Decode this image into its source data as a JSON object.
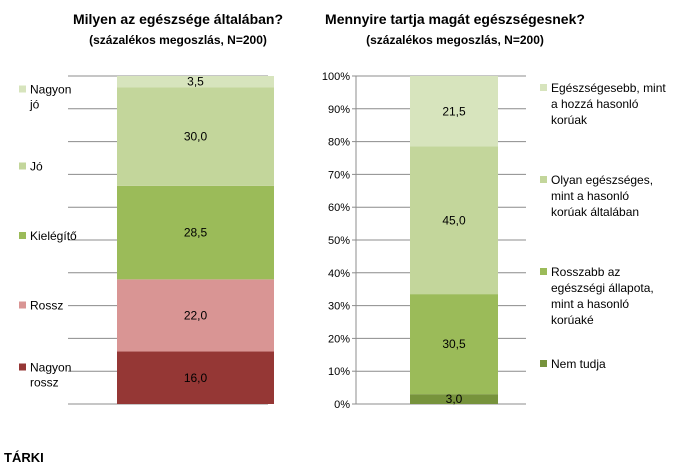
{
  "chart_data": [
    {
      "type": "bar",
      "stacked": true,
      "title": "Milyen az egészsége általában?",
      "subtitle": "(százalékos megoszlás, N=200)",
      "series": [
        {
          "name": "Nagyon rossz",
          "value": 16.0,
          "label": "16,0",
          "color": "#953735"
        },
        {
          "name": "Rossz",
          "value": 22.0,
          "label": "22,0",
          "color": "#d99594"
        },
        {
          "name": "Kielégítő",
          "value": 28.5,
          "label": "28,5",
          "color": "#9bbb59"
        },
        {
          "name": "Jó",
          "value": 30.0,
          "label": "30,0",
          "color": "#c3d69b"
        },
        {
          "name": "Nagyon jó",
          "value": 3.5,
          "label": "3,5",
          "color": "#d7e4bd"
        }
      ],
      "legend_order": [
        "Nagyon jó",
        "Jó",
        "Kielégítő",
        "Rossz",
        "Nagyon rossz"
      ],
      "legend_lines": {
        "Nagyon jó": [
          "Nagyon",
          "jó"
        ],
        "Jó": [
          "Jó"
        ],
        "Kielégítő": [
          "Kielégítő"
        ],
        "Rossz": [
          "Rossz"
        ],
        "Nagyon rossz": [
          "Nagyon",
          "rossz"
        ]
      },
      "ylim": [
        0,
        100
      ],
      "legend_position": "left",
      "grid": true
    },
    {
      "type": "bar",
      "stacked": true,
      "title": "Mennyire tartja magát egészségesnek?",
      "subtitle": "(százalékos megoszlás, N=200)",
      "series": [
        {
          "name": "Nem tudja",
          "value": 3.0,
          "label": "3,0",
          "color": "#77933c"
        },
        {
          "name": "Rosszabb az egészségi állapota, mint a hasonló korúaké",
          "value": 30.5,
          "label": "30,5",
          "color": "#9bbb59"
        },
        {
          "name": "Olyan egészséges, mint a hasonló korúak általában",
          "value": 45.0,
          "label": "45,0",
          "color": "#c3d69b"
        },
        {
          "name": "Egészségesebb, mint a hozzá hasonló korúak",
          "value": 21.5,
          "label": "21,5",
          "color": "#d7e4bd"
        }
      ],
      "legend_order": [
        "Egészségesebb, mint a hozzá hasonló korúak",
        "Olyan egészséges, mint a hasonló korúak általában",
        "Rosszabb az egészségi állapota, mint a hasonló korúaké",
        "Nem tudja"
      ],
      "legend_lines": {
        "Egészségesebb, mint a hozzá hasonló korúak": [
          "Egészségesebb, mint",
          "a hozzá hasonló",
          "korúak"
        ],
        "Olyan egészséges, mint a hasonló korúak általában": [
          "Olyan egészséges,",
          "mint a hasonló",
          "korúak általában"
        ],
        "Rosszabb az egészségi állapota, mint a hasonló korúaké": [
          "Rosszabb az",
          "egészségi állapota,",
          "mint a hasonló",
          "korúaké"
        ],
        "Nem tudja": [
          "Nem tudja"
        ]
      },
      "y_ticks": [
        "0%",
        "10%",
        "20%",
        "30%",
        "40%",
        "50%",
        "60%",
        "70%",
        "80%",
        "90%",
        "100%"
      ],
      "ylim": [
        0,
        100
      ],
      "legend_position": "right",
      "grid": true
    }
  ],
  "footer": "TÁRKI"
}
